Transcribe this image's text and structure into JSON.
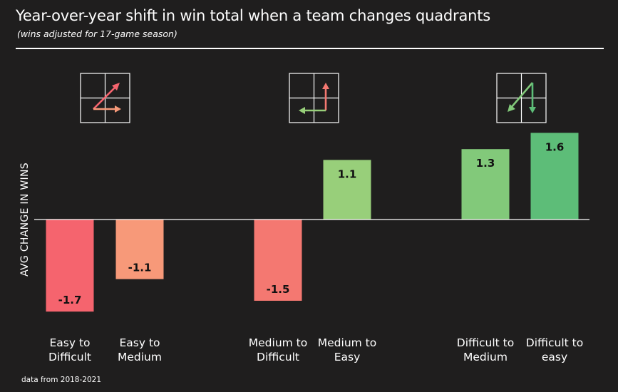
{
  "title": "Year-over-year shift in win total when a team changes quadrants",
  "subtitle": "(wins adjusted for 17-game season)",
  "source": "data from 2018-2021",
  "colors": {
    "background": "#1f1e1e",
    "text": "#ffffff",
    "negative_dark": "#f5646e",
    "negative_mid": "#f47871",
    "negative_light": "#f79979",
    "positive_light": "#98cf7a",
    "positive_mid": "#82c97a",
    "positive_dark": "#5dbd78"
  },
  "icons": [
    "arrow-up-right-and-right-icon",
    "arrow-up-and-left-icon",
    "arrow-up-left-and-down-icon"
  ],
  "chart_data": {
    "type": "bar",
    "title": "Year-over-year shift in win total when a team changes quadrants",
    "subtitle": "(wins adjusted for 17-game season)",
    "xlabel": "",
    "ylabel": "AVG CHANGE IN WINS",
    "grid": false,
    "categories": [
      [
        "Easy to",
        "Difficult"
      ],
      [
        "Easy to",
        "Medium"
      ],
      [
        "Medium to",
        "Difficult"
      ],
      [
        "Medium to",
        "Easy"
      ],
      [
        "Difficult to",
        "Medium"
      ],
      [
        "Difficult to",
        "easy"
      ]
    ],
    "values": [
      -1.7,
      -1.1,
      -1.5,
      1.1,
      1.3,
      1.6
    ],
    "value_labels": [
      "-1.7",
      "-1.1",
      "-1.5",
      "1.1",
      "1.3",
      "1.6"
    ],
    "bar_colors": [
      "#f5646e",
      "#f79979",
      "#f47871",
      "#98cf7a",
      "#82c97a",
      "#5dbd78"
    ],
    "groups": [
      [
        0,
        1
      ],
      [
        2,
        3
      ],
      [
        4,
        5
      ]
    ]
  }
}
